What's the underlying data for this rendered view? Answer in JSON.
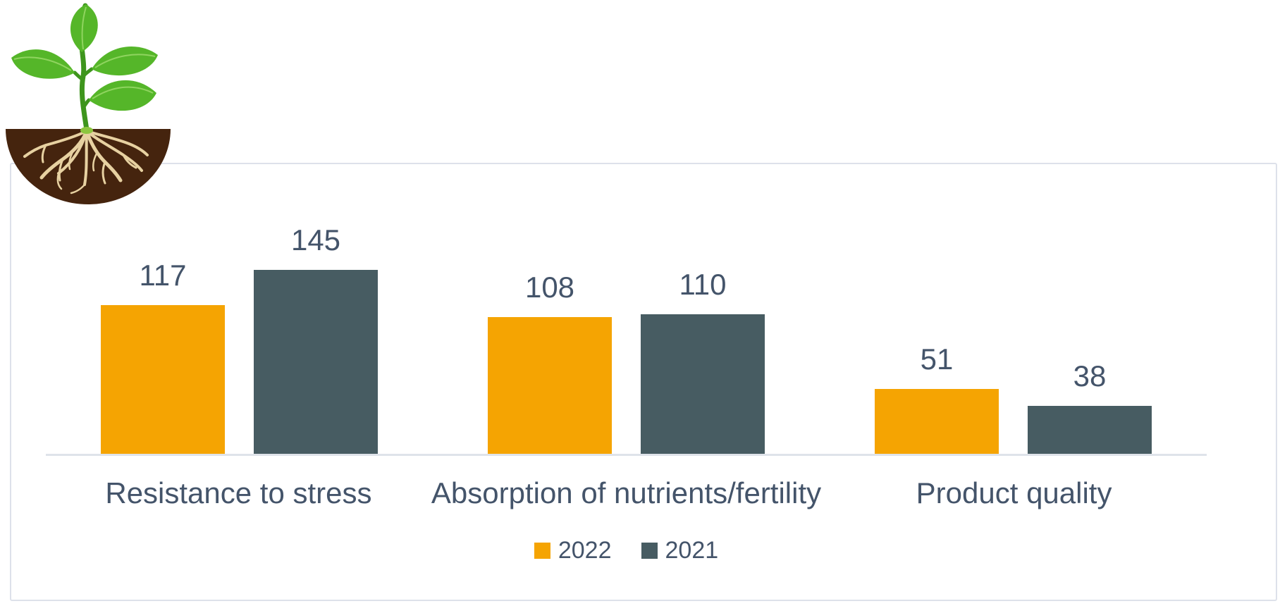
{
  "chart_data": {
    "type": "bar",
    "categories": [
      "Resistance to stress",
      "Absorption of nutrients/fertility",
      "Product quality"
    ],
    "series": [
      {
        "name": "2022",
        "color": "#f5a402",
        "values": [
          117,
          108,
          51
        ]
      },
      {
        "name": "2021",
        "color": "#475c62",
        "values": [
          145,
          110,
          38
        ]
      }
    ],
    "title": "",
    "xlabel": "",
    "ylabel": "",
    "ylim": [
      0,
      160
    ],
    "grid": false,
    "legend_position": "bottom",
    "data_labels": [
      [
        117,
        108,
        51
      ],
      [
        145,
        110,
        38
      ]
    ],
    "label_color": "#44546a"
  },
  "decoration": {
    "icon": "seedling-with-roots-icon"
  }
}
